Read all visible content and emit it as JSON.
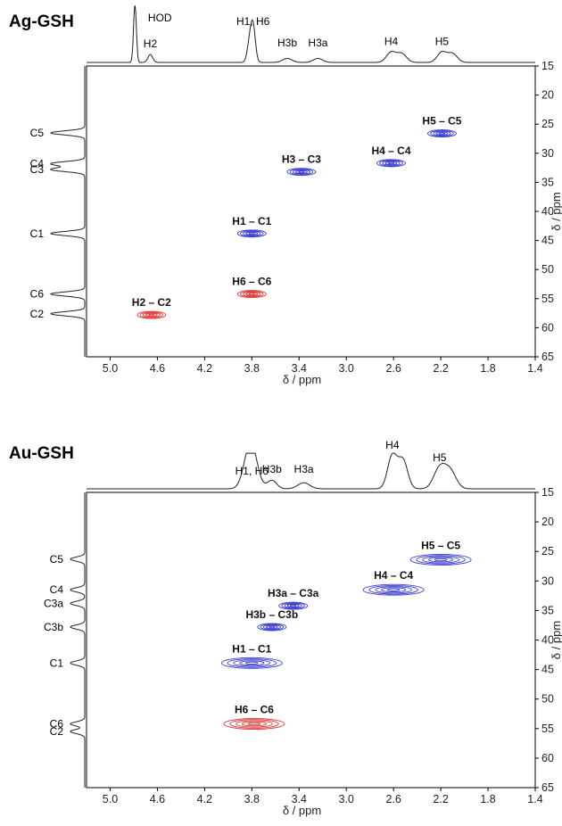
{
  "chart_data": [
    {
      "type": "scatter",
      "subtype": "2D NMR (HSQC) contour map with 1D projections",
      "title": "Ag-GSH",
      "xlabel": "δ / ppm",
      "ylabel": "δ / ppm",
      "xlim": [
        5.2,
        1.4
      ],
      "ylim": [
        15,
        65
      ],
      "x_reversed": true,
      "y_reversed": true,
      "xticks": [
        "5.0",
        "4.6",
        "4.2",
        "3.8",
        "3.4",
        "3.0",
        "2.6",
        "2.2",
        "1.8",
        "1.4"
      ],
      "yticks": [
        "15",
        "20",
        "25",
        "30",
        "35",
        "40",
        "45",
        "50",
        "55",
        "60",
        "65"
      ],
      "top_projection_peaks": [
        {
          "label": "HOD",
          "x": 4.79
        },
        {
          "label": "H2",
          "x": 4.66
        },
        {
          "label": "H1, H6",
          "x": 3.79
        },
        {
          "label": "H3b",
          "x": 3.5
        },
        {
          "label": "H3a",
          "x": 3.24
        },
        {
          "label": "H4",
          "x": 2.62
        },
        {
          "label": "H5",
          "x": 2.19
        }
      ],
      "side_projection_peaks": [
        {
          "label": "C5",
          "y": 26.5
        },
        {
          "label": "C4",
          "y": 31.8
        },
        {
          "label": "C3",
          "y": 32.8
        },
        {
          "label": "C1",
          "y": 43.8
        },
        {
          "label": "C6",
          "y": 54.2
        },
        {
          "label": "C2",
          "y": 57.6
        }
      ],
      "series": [
        {
          "phase": "positive",
          "color": "#3a3ccf",
          "points": [
            {
              "label": "H5 – C5",
              "x": 2.19,
              "y": 26.6
            },
            {
              "label": "H4 – C4",
              "x": 2.62,
              "y": 31.7
            },
            {
              "label": "H3 – C3",
              "x": 3.38,
              "y": 33.2
            },
            {
              "label": "H1 – C1",
              "x": 3.8,
              "y": 43.8
            }
          ]
        },
        {
          "phase": "negative",
          "color": "#e03a3a",
          "points": [
            {
              "label": "H6 – C6",
              "x": 3.8,
              "y": 54.2
            },
            {
              "label": "H2 – C2",
              "x": 4.65,
              "y": 57.8
            }
          ]
        }
      ]
    },
    {
      "type": "scatter",
      "subtype": "2D NMR (HSQC) contour map with 1D projections",
      "title": "Au-GSH",
      "xlabel": "δ / ppm",
      "ylabel": "δ / ppm",
      "xlim": [
        5.2,
        1.4
      ],
      "ylim": [
        15,
        65
      ],
      "x_reversed": true,
      "y_reversed": true,
      "xticks": [
        "5.0",
        "4.6",
        "4.2",
        "3.8",
        "3.4",
        "3.0",
        "2.6",
        "2.2",
        "1.8",
        "1.4"
      ],
      "yticks": [
        "15",
        "20",
        "25",
        "30",
        "35",
        "40",
        "45",
        "50",
        "55",
        "60",
        "65"
      ],
      "top_projection_peaks": [
        {
          "label": "H1, H6",
          "x": 3.8
        },
        {
          "label": "H3b",
          "x": 3.63
        },
        {
          "label": "H3a",
          "x": 3.36
        },
        {
          "label": "H4",
          "x": 2.61
        },
        {
          "label": "H5",
          "x": 2.21
        }
      ],
      "side_projection_peaks": [
        {
          "label": "C5",
          "y": 26.3
        },
        {
          "label": "C4",
          "y": 31.5
        },
        {
          "label": "C3a",
          "y": 33.8
        },
        {
          "label": "C3b",
          "y": 37.8
        },
        {
          "label": "C1",
          "y": 43.9
        },
        {
          "label": "C6",
          "y": 54.2
        },
        {
          "label": "C2",
          "y": 55.5
        }
      ],
      "series": [
        {
          "phase": "positive",
          "color": "#3a3ccf",
          "points": [
            {
              "label": "H5 – C5",
              "x": 2.2,
              "y": 26.4
            },
            {
              "label": "H4 – C4",
              "x": 2.6,
              "y": 31.5
            },
            {
              "label": "H3a – C3a",
              "x": 3.45,
              "y": 34.2
            },
            {
              "label": "H3b – C3b",
              "x": 3.63,
              "y": 37.8
            },
            {
              "label": "H1 – C1",
              "x": 3.8,
              "y": 43.9
            }
          ]
        },
        {
          "phase": "negative",
          "color": "#e03a3a",
          "points": [
            {
              "label": "H6 – C6",
              "x": 3.78,
              "y": 54.2
            }
          ]
        }
      ]
    }
  ]
}
